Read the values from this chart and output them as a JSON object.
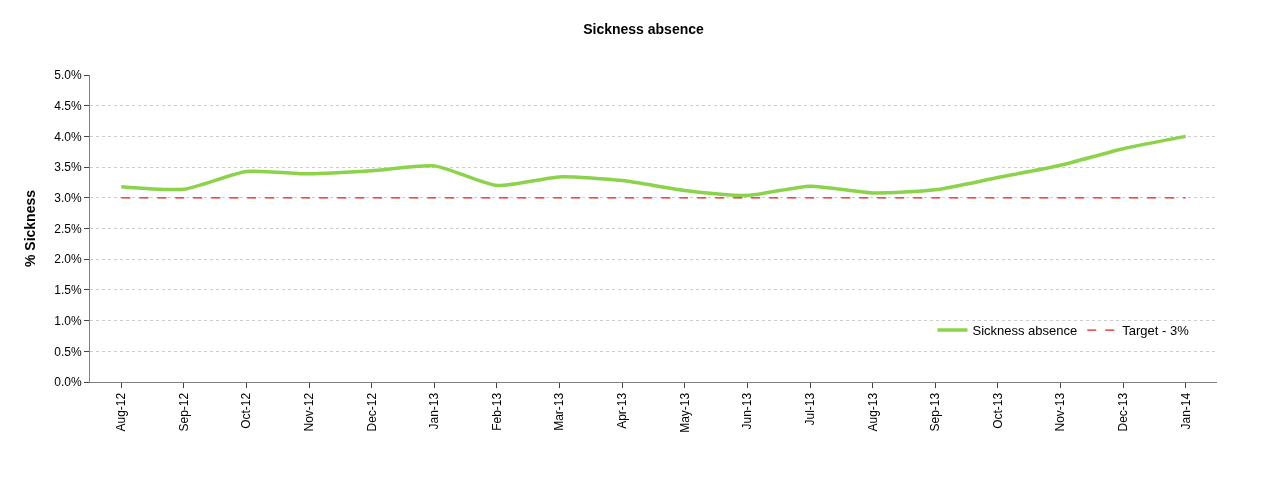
{
  "chart_data": {
    "type": "line",
    "title": "Sickness absence",
    "ylabel": "% Sickness",
    "categories": [
      "Aug-12",
      "Sep-12",
      "Oct-12",
      "Nov-12",
      "Dec-12",
      "Jan-13",
      "Feb-13",
      "Mar-13",
      "Apr-13",
      "May-13",
      "Jun-13",
      "Jul-13",
      "Aug-13",
      "Sep-13",
      "Oct-13",
      "Nov-13",
      "Dec-13",
      "Jan-14"
    ],
    "series": [
      {
        "name": "Sickness absence",
        "color": "#8cd24b",
        "line_style": "solid",
        "values": [
          3.18,
          3.14,
          3.43,
          3.39,
          3.44,
          3.52,
          3.2,
          3.34,
          3.28,
          3.12,
          3.04,
          3.19,
          3.08,
          3.13,
          3.33,
          3.53,
          3.8,
          4.0
        ]
      },
      {
        "name": "Target - 3%",
        "color": "#e02020",
        "line_style": "dashed",
        "values": [
          3,
          3,
          3,
          3,
          3,
          3,
          3,
          3,
          3,
          3,
          3,
          3,
          3,
          3,
          3,
          3,
          3,
          3
        ]
      }
    ],
    "ylim": [
      0,
      5
    ],
    "yticks": [
      {
        "value": 0,
        "label": "0.0%"
      },
      {
        "value": 0.5,
        "label": "0.5%"
      },
      {
        "value": 1,
        "label": "1.0%"
      },
      {
        "value": 1.5,
        "label": "1.5%"
      },
      {
        "value": 2,
        "label": "2.0%"
      },
      {
        "value": 2.5,
        "label": "2.5%"
      },
      {
        "value": 3,
        "label": "3.0%"
      },
      {
        "value": 3.5,
        "label": "3.5%"
      },
      {
        "value": 4,
        "label": "4.0%"
      },
      {
        "value": 4.5,
        "label": "4.5%"
      },
      {
        "value": 5,
        "label": "5.0%"
      }
    ],
    "grid": "y",
    "legend": "bottom right",
    "marker": "none"
  }
}
